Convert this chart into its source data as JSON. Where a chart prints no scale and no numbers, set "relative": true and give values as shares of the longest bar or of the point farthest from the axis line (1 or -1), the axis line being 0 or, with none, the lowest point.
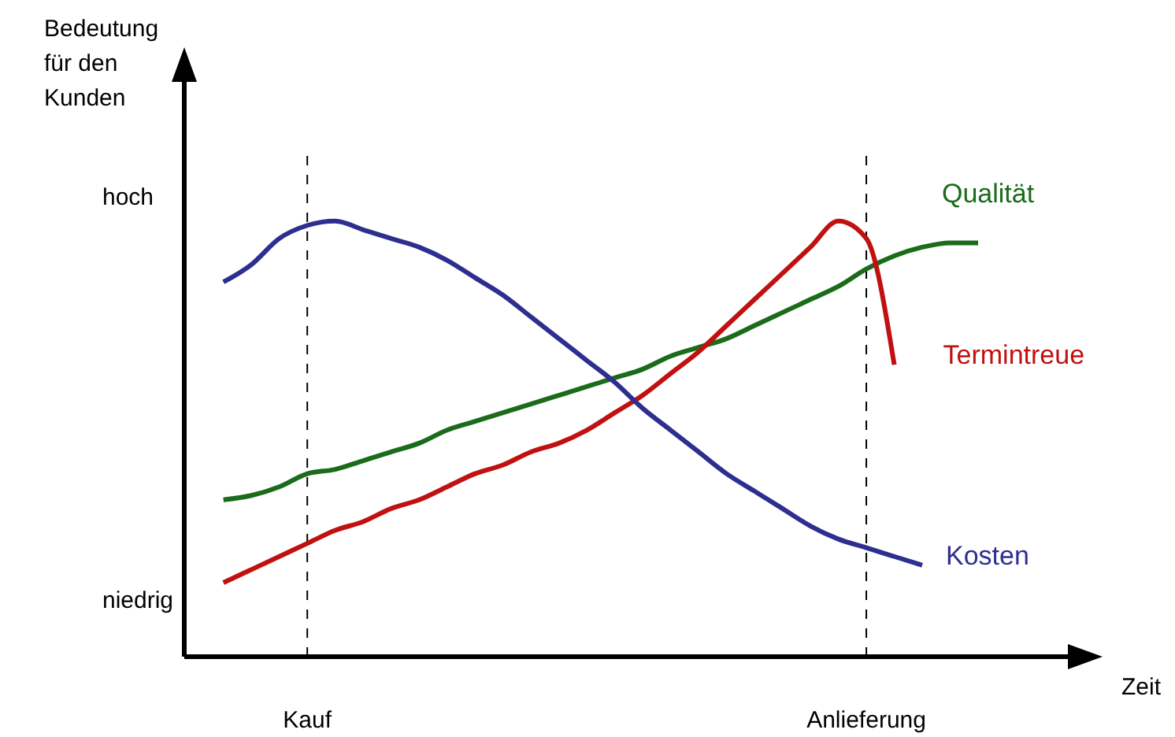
{
  "chart_data": {
    "type": "line",
    "relative": true,
    "ylabel": "Bedeutung für den Kunden",
    "xlabel": "Zeit",
    "annotations": [
      "hoch",
      "niedrig"
    ],
    "categories": [
      null,
      null,
      null,
      null,
      "Kauf",
      null,
      null,
      null,
      null,
      null,
      null,
      null,
      null,
      null,
      null,
      null,
      null,
      null,
      null,
      null,
      null,
      null,
      null,
      null,
      "Anlieferung",
      null,
      null,
      null,
      null,
      null,
      null,
      null,
      null
    ],
    "ref_lines": [
      {
        "axis": "x",
        "value": "Kauf",
        "line_style": "dashed"
      },
      {
        "axis": "x",
        "value": "Anlieferung",
        "line_style": "dashed"
      }
    ],
    "series": [
      {
        "name": "Qualität",
        "color": "#1a6b1a",
        "values": [
          null,
          0.36,
          0.37,
          0.39,
          0.42,
          0.43,
          0.45,
          0.47,
          0.49,
          0.52,
          0.54,
          0.56,
          0.58,
          0.6,
          0.62,
          0.64,
          0.66,
          0.69,
          0.71,
          0.73,
          0.76,
          0.79,
          0.82,
          0.85,
          0.89,
          0.92,
          0.94,
          0.95,
          0.95,
          null,
          null,
          null,
          null
        ]
      },
      {
        "name": "Termintreue",
        "color": "#c01010",
        "values": [
          null,
          0.17,
          0.2,
          0.23,
          0.26,
          0.29,
          0.31,
          0.34,
          0.36,
          0.39,
          0.42,
          0.44,
          0.47,
          0.49,
          0.52,
          0.56,
          0.6,
          0.65,
          0.7,
          0.76,
          0.82,
          0.88,
          0.94,
          1.0,
          0.96,
          0.67,
          null,
          null,
          null,
          null,
          null,
          null,
          null
        ]
      },
      {
        "name": "Kosten",
        "color": "#2e2e90",
        "values": [
          null,
          0.86,
          0.9,
          0.96,
          0.99,
          1.0,
          0.98,
          0.96,
          0.94,
          0.91,
          0.87,
          0.83,
          0.78,
          0.73,
          0.68,
          0.63,
          0.57,
          0.52,
          0.47,
          0.42,
          0.38,
          0.34,
          0.3,
          0.27,
          0.25,
          0.23,
          0.21,
          null,
          null,
          null,
          null,
          null,
          null
        ]
      }
    ]
  }
}
